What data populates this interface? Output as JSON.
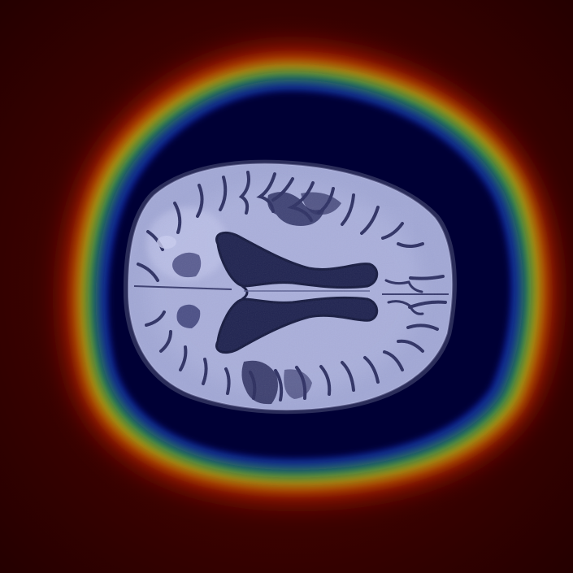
{
  "image": {
    "kind": "axial brain MRI slice with heatmap overlay",
    "colors": {
      "background_dark_red": "#2a0000",
      "heatmap_outer_red": "#7a0a00",
      "heatmap_orange": "#e05a00",
      "heatmap_yellow": "#d8c000",
      "heatmap_green": "#2aa02a",
      "heatmap_blue": "#0a1aa0",
      "heatmap_core_navy": "#030330",
      "brain_tissue": "#a6acd8",
      "brain_edge": "#2b2d5a",
      "ventricle": "#252a55"
    }
  }
}
